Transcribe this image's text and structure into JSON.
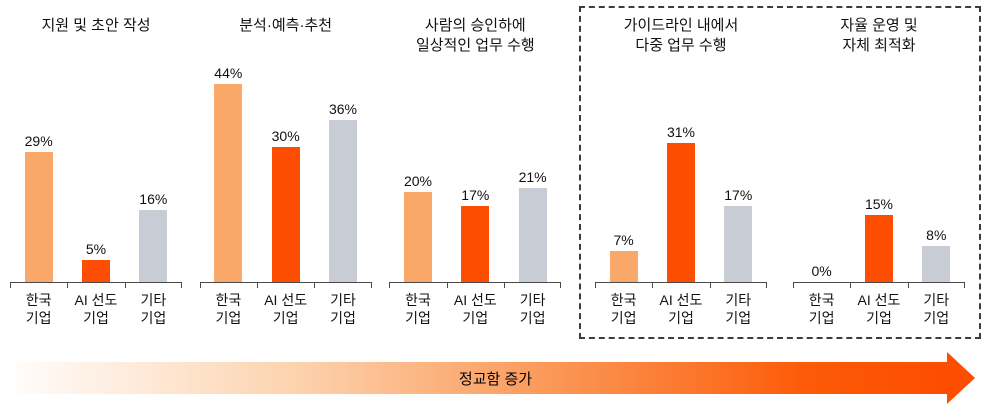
{
  "chart_data": {
    "type": "bar",
    "categories": [
      "한국\n기업",
      "AI 선도\n기업",
      "기타\n기업"
    ],
    "series_colors": [
      "#F9A869",
      "#FD4D00",
      "#C8CCD4"
    ],
    "ylim": [
      0,
      44
    ],
    "grid": false,
    "legend": "none",
    "groups": [
      {
        "title": "지원 및 초안 작성",
        "values": [
          29,
          5,
          16
        ],
        "labels": [
          "29%",
          "5%",
          "16%"
        ],
        "boxed": false
      },
      {
        "title": "분석·예측·추천",
        "values": [
          44,
          30,
          36
        ],
        "labels": [
          "44%",
          "30%",
          "36%"
        ],
        "boxed": false
      },
      {
        "title": "사람의 승인하에\n일상적인 업무 수행",
        "values": [
          20,
          17,
          21
        ],
        "labels": [
          "20%",
          "17%",
          "21%"
        ],
        "boxed": false
      },
      {
        "title": "가이드라인 내에서\n다중 업무 수행",
        "values": [
          7,
          31,
          17
        ],
        "labels": [
          "7%",
          "31%",
          "17%"
        ],
        "boxed": true
      },
      {
        "title": "자율 운영 및\n자체 최적화",
        "values": [
          0,
          15,
          8
        ],
        "labels": [
          "0%",
          "15%",
          "8%"
        ],
        "boxed": true
      }
    ],
    "arrow_label": "정교함 증가"
  }
}
